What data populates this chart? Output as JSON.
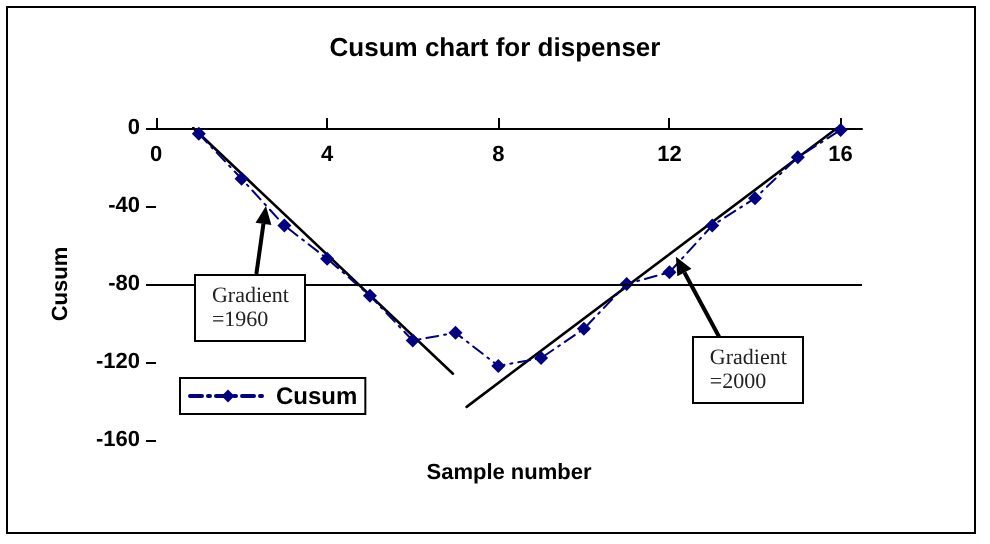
{
  "chart_data": {
    "type": "line",
    "title": "Cusum chart for dispenser",
    "xlabel": "Sample number",
    "ylabel": "Cusum",
    "x": [
      1,
      2,
      3,
      4,
      5,
      6,
      7,
      8,
      9,
      10,
      11,
      12,
      13,
      14,
      15,
      16
    ],
    "series": [
      {
        "name": "Cusum",
        "color": "#000080",
        "marker": "diamond",
        "line_style": "dashed",
        "values": [
          -3,
          -26,
          -50,
          -67,
          -86,
          -109,
          -105,
          -122,
          -118,
          -103,
          -80,
          -74,
          -50,
          -36,
          -15,
          -1
        ]
      },
      {
        "type": "line",
        "color": "#000000",
        "marker": "none",
        "line_style": "solid",
        "x": [
          0.87,
          6.94
        ],
        "values": [
          0,
          -126
        ]
      },
      {
        "type": "line",
        "color": "#000000",
        "marker": "none",
        "line_style": "solid",
        "x": [
          7.26,
          15.92
        ],
        "values": [
          -143,
          0
        ]
      }
    ],
    "xlim": [
      0,
      16.5
    ],
    "xticks": [
      0,
      4,
      8,
      12,
      16
    ],
    "ylim": [
      -160,
      0
    ],
    "yticks": [
      0,
      -40,
      -80,
      -120,
      -160
    ],
    "grid": false,
    "legend": "bottom left",
    "ref_lines": [
      {
        "axis": "y",
        "value": -80,
        "color": "#000000"
      }
    ],
    "annotations": [
      {
        "text": "Gradient\n=1960",
        "x": 2.57,
        "y": -40
      },
      {
        "text": "Gradient\n=2000",
        "x": 12.15,
        "y": -66
      }
    ]
  }
}
